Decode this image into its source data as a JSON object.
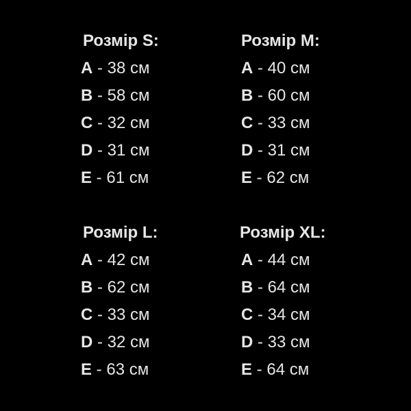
{
  "sizes": [
    {
      "title": "Розмір S:",
      "rows": [
        {
          "letter": "A",
          "value": " - 38 см"
        },
        {
          "letter": "B",
          "value": " - 58 см"
        },
        {
          "letter": "C",
          "value": " - 32 см"
        },
        {
          "letter": "D",
          "value": " - 31 см"
        },
        {
          "letter": "E",
          "value": " - 61 см"
        }
      ]
    },
    {
      "title": "Розмір M:",
      "rows": [
        {
          "letter": "A",
          "value": " - 40 см"
        },
        {
          "letter": "B",
          "value": " - 60 см"
        },
        {
          "letter": "C",
          "value": " - 33 см"
        },
        {
          "letter": "D",
          "value": " - 31 см"
        },
        {
          "letter": "E",
          "value": " - 62 см"
        }
      ]
    },
    {
      "title": "Розмір L:",
      "rows": [
        {
          "letter": "A",
          "value": " - 42 см"
        },
        {
          "letter": "B",
          "value": " - 62 см"
        },
        {
          "letter": "C",
          "value": " - 33 см"
        },
        {
          "letter": "D",
          "value": " - 32 см"
        },
        {
          "letter": "E",
          "value": " - 63 см"
        }
      ]
    },
    {
      "title": "Розмір XL:",
      "rows": [
        {
          "letter": "A",
          "value": " - 44 см"
        },
        {
          "letter": "B",
          "value": " - 64 см"
        },
        {
          "letter": "C",
          "value": " - 34 см"
        },
        {
          "letter": "D",
          "value": " - 33 см"
        },
        {
          "letter": "E",
          "value": " - 64 см"
        }
      ]
    }
  ],
  "colors": {
    "background": "#000000",
    "text": "#e6e6e6"
  }
}
